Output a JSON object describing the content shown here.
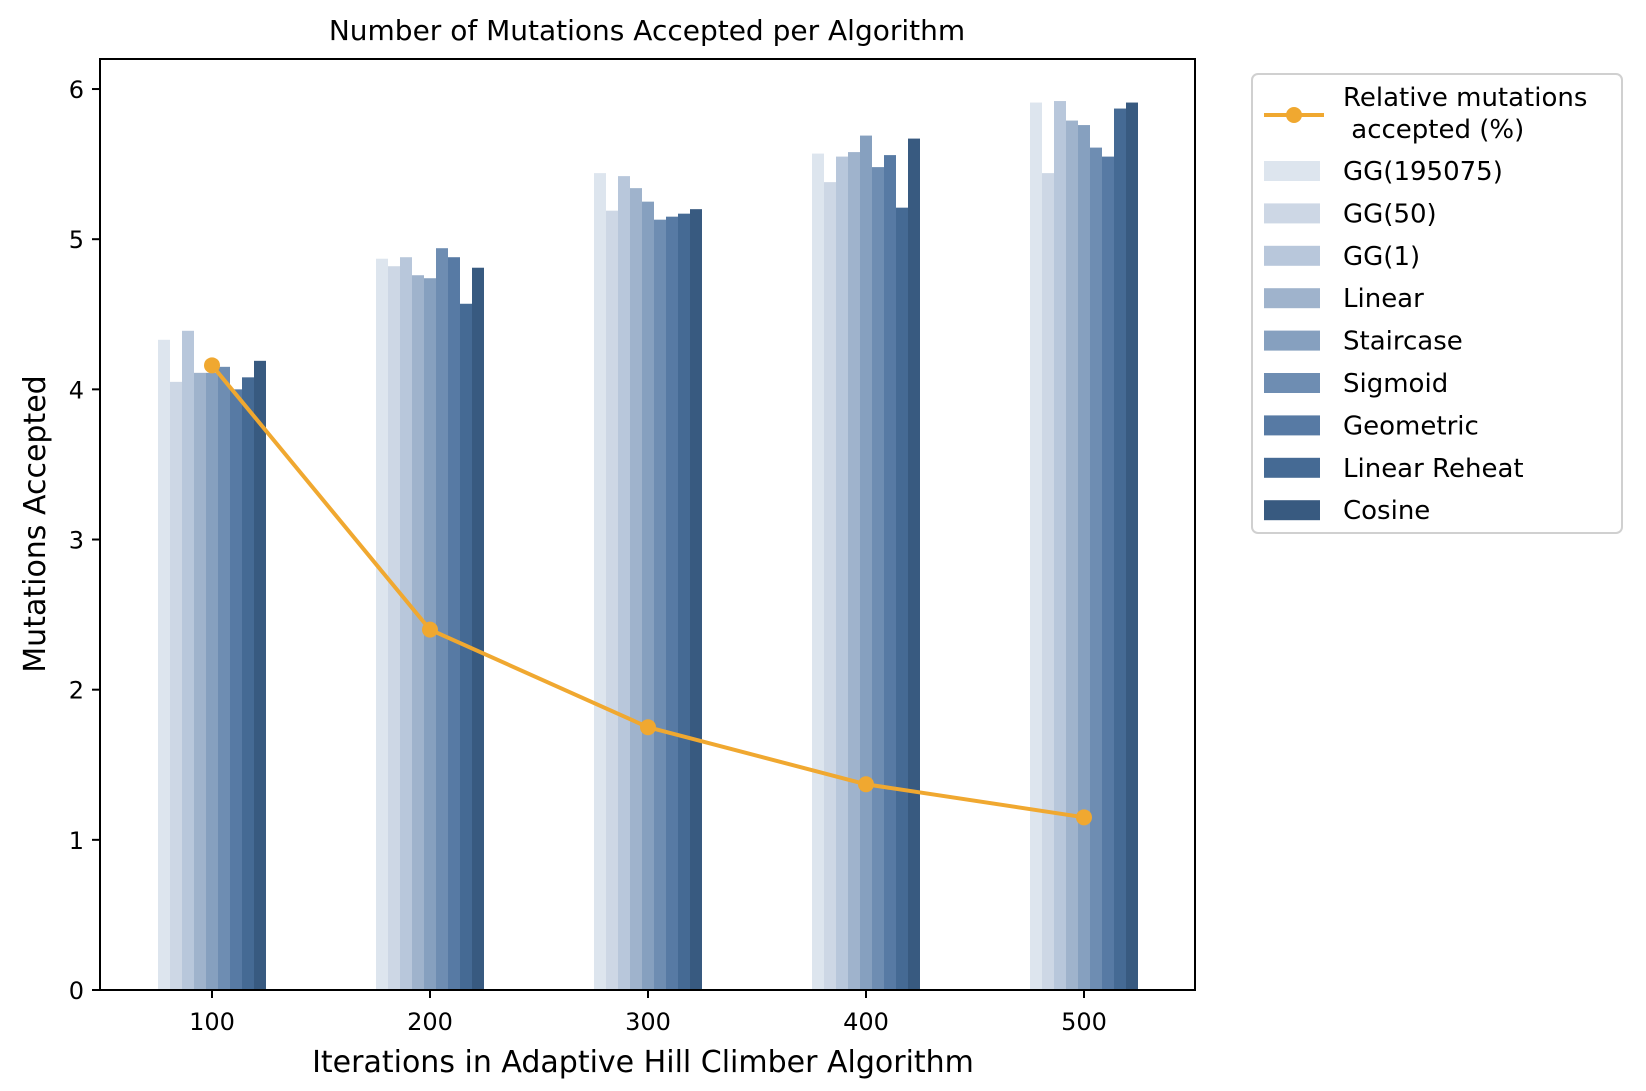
{
  "chart_data": {
    "type": "bar",
    "title": "Number of Mutations Accepted per Algorithm",
    "xlabel": "Iterations in Adaptive Hill Climber Algorithm",
    "ylabel": "Mutations Accepted",
    "categories": [
      "100",
      "200",
      "300",
      "400",
      "500"
    ],
    "yticks": [
      "0",
      "1",
      "2",
      "3",
      "4",
      "5",
      "6"
    ],
    "ylim": [
      0,
      6.2
    ],
    "grid": false,
    "legend_position": "outside-right",
    "series": [
      {
        "name": "GG(195075)",
        "color": "#dde5ee",
        "values": [
          4.33,
          4.87,
          5.44,
          5.57,
          5.91
        ]
      },
      {
        "name": "GG(50)",
        "color": "#cdd7e5",
        "values": [
          4.05,
          4.82,
          5.19,
          5.38,
          5.44
        ]
      },
      {
        "name": "GG(1)",
        "color": "#b8c7db",
        "values": [
          4.39,
          4.88,
          5.42,
          5.55,
          5.92
        ]
      },
      {
        "name": "Linear",
        "color": "#9fb3cc",
        "values": [
          4.11,
          4.76,
          5.34,
          5.58,
          5.79
        ]
      },
      {
        "name": "Staircase",
        "color": "#86a0bf",
        "values": [
          4.11,
          4.74,
          5.25,
          5.69,
          5.76
        ]
      },
      {
        "name": "Sigmoid",
        "color": "#6e8db2",
        "values": [
          4.15,
          4.94,
          5.13,
          5.48,
          5.61
        ]
      },
      {
        "name": "Geometric",
        "color": "#577aa4",
        "values": [
          4.0,
          4.88,
          5.15,
          5.56,
          5.55
        ]
      },
      {
        "name": "Linear Reheat",
        "color": "#456a94",
        "values": [
          4.08,
          4.57,
          5.17,
          5.21,
          5.87
        ]
      },
      {
        "name": "Cosine",
        "color": "#385a80",
        "values": [
          4.19,
          4.81,
          5.2,
          5.67,
          5.91
        ]
      }
    ],
    "line_series": {
      "name": "Relative mutations\n accepted (%)",
      "color": "#f0a830",
      "values": [
        4.16,
        2.4,
        1.75,
        1.37,
        1.15
      ]
    }
  }
}
